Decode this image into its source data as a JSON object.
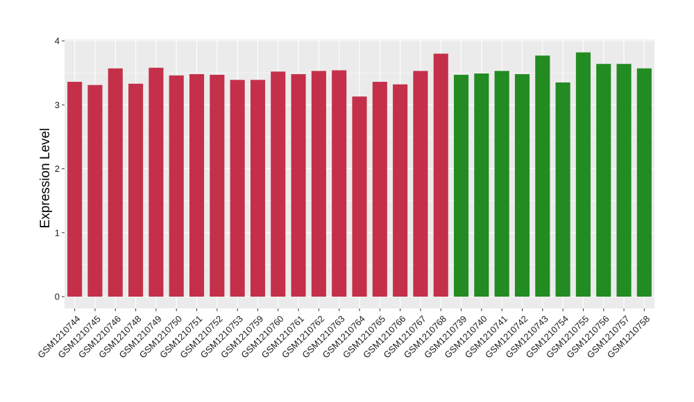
{
  "chart_data": {
    "type": "bar",
    "title": "",
    "xlabel": "",
    "ylabel": "Expression Level",
    "ylim": [
      0,
      4
    ],
    "yticks": [
      0,
      1,
      2,
      3,
      4
    ],
    "grid": true,
    "legend": "none",
    "background_color": "#ebebeb",
    "gridline_color": "#ffffff",
    "categories": [
      "GSM1210744",
      "GSM1210745",
      "GSM1210746",
      "GSM1210748",
      "GSM1210749",
      "GSM1210750",
      "GSM1210751",
      "GSM1210752",
      "GSM1210753",
      "GSM1210759",
      "GSM1210760",
      "GSM1210761",
      "GSM1210762",
      "GSM1210763",
      "GSM1210764",
      "GSM1210765",
      "GSM1210766",
      "GSM1210767",
      "GSM1210768",
      "GSM1210739",
      "GSM1210740",
      "GSM1210741",
      "GSM1210742",
      "GSM1210743",
      "GSM1210754",
      "GSM1210755",
      "GSM1210756",
      "GSM1210757",
      "GSM1210758"
    ],
    "values": [
      3.36,
      3.31,
      3.57,
      3.33,
      3.58,
      3.46,
      3.48,
      3.47,
      3.39,
      3.39,
      3.52,
      3.48,
      3.53,
      3.54,
      3.13,
      3.36,
      3.32,
      3.53,
      3.8,
      3.47,
      3.49,
      3.53,
      3.48,
      3.77,
      3.35,
      3.82,
      3.64,
      3.64,
      3.57
    ],
    "bar_colors": [
      "#c43049",
      "#c43049",
      "#c43049",
      "#c43049",
      "#c43049",
      "#c43049",
      "#c43049",
      "#c43049",
      "#c43049",
      "#c43049",
      "#c43049",
      "#c43049",
      "#c43049",
      "#c43049",
      "#c43049",
      "#c43049",
      "#c43049",
      "#c43049",
      "#c43049",
      "#228b22",
      "#228b22",
      "#228b22",
      "#228b22",
      "#228b22",
      "#228b22",
      "#228b22",
      "#228b22",
      "#228b22",
      "#228b22"
    ]
  }
}
